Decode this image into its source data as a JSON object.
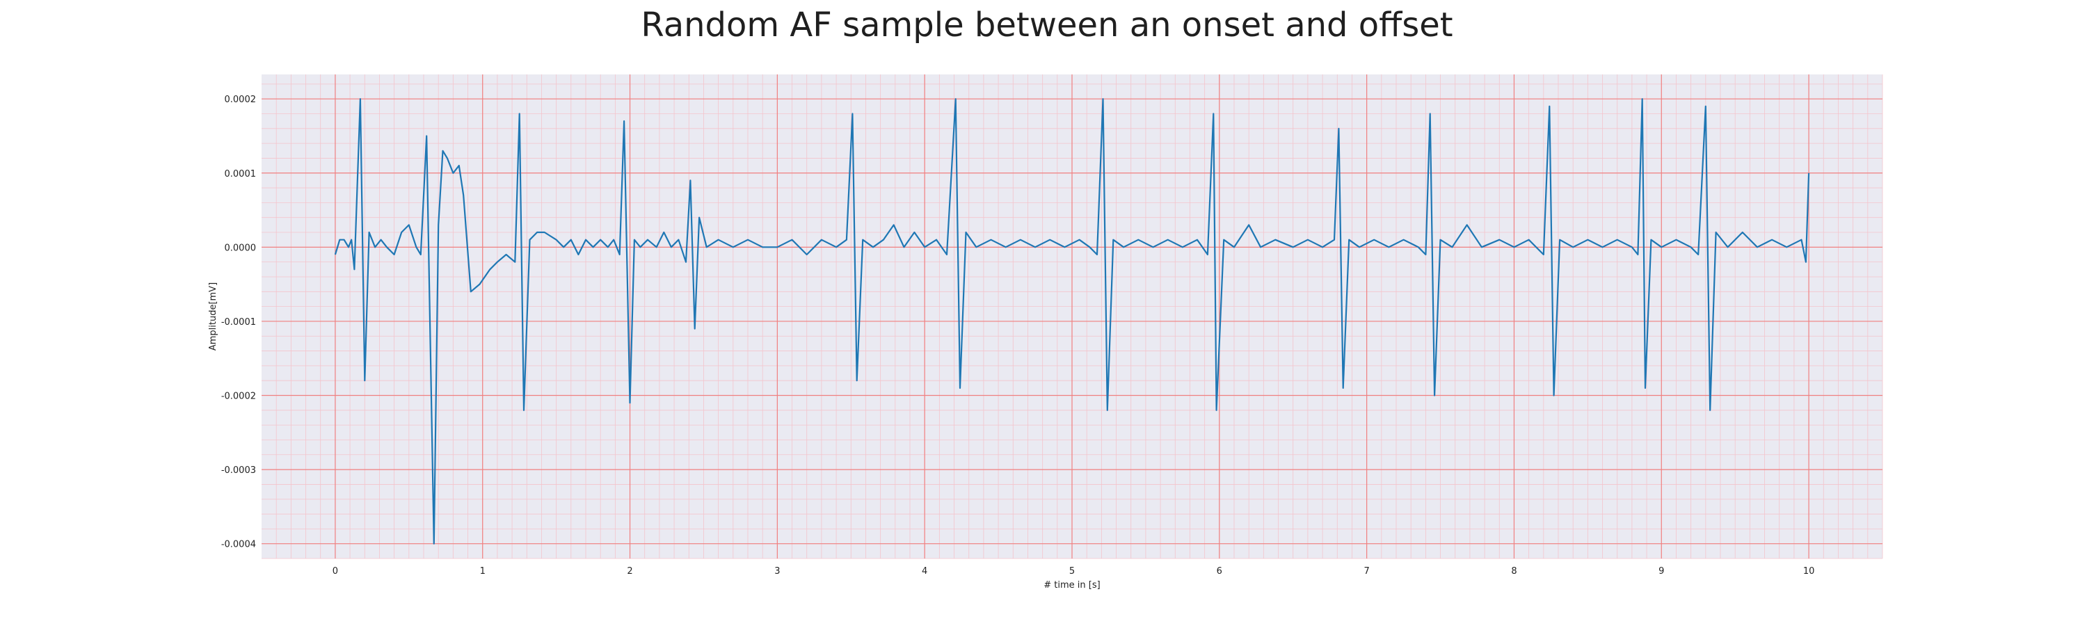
{
  "chart_data": {
    "type": "line",
    "title": "Random AF sample between an onset and offset",
    "xlabel": "# time in [s]",
    "ylabel": "Amplitude[mV]",
    "xlim": [
      -0.5,
      10.5
    ],
    "ylim": [
      -0.00042,
      0.000233
    ],
    "xticks": [
      0,
      1,
      2,
      3,
      4,
      5,
      6,
      7,
      8,
      9,
      10
    ],
    "xtick_labels": [
      "0",
      "1",
      "2",
      "3",
      "4",
      "5",
      "6",
      "7",
      "8",
      "9",
      "10"
    ],
    "yticks": [
      0.0002,
      0.0001,
      0.0,
      -0.0001,
      -0.0002,
      -0.0003,
      -0.0004
    ],
    "ytick_labels": [
      "0.0002",
      "0.0001",
      "0.0000",
      "-0.0001",
      "-0.0002",
      "-0.0003",
      "-0.0004"
    ],
    "grid": true,
    "minor_grid": true,
    "colors": {
      "background": "#eaeaf2",
      "major_grid": "#f08080",
      "minor_grid": "#f4c4cc",
      "line": "#1f77b4"
    },
    "series": [
      {
        "points": [
          [
            0.0,
            -1e-05
          ],
          [
            0.03,
            1e-05
          ],
          [
            0.06,
            1e-05
          ],
          [
            0.09,
            0.0
          ],
          [
            0.11,
            1e-05
          ],
          [
            0.13,
            -3e-05
          ],
          [
            0.17,
            0.0002
          ],
          [
            0.2,
            -0.00018
          ],
          [
            0.23,
            2e-05
          ],
          [
            0.27,
            0.0
          ],
          [
            0.31,
            1e-05
          ],
          [
            0.35,
            0.0
          ],
          [
            0.4,
            -1e-05
          ],
          [
            0.45,
            2e-05
          ],
          [
            0.5,
            3e-05
          ],
          [
            0.55,
            0.0
          ],
          [
            0.58,
            -1e-05
          ],
          [
            0.62,
            0.00015
          ],
          [
            0.67,
            -0.0004
          ],
          [
            0.7,
            3e-05
          ],
          [
            0.73,
            0.00013
          ],
          [
            0.76,
            0.00012
          ],
          [
            0.8,
            0.0001
          ],
          [
            0.84,
            0.00011
          ],
          [
            0.87,
            7e-05
          ],
          [
            0.92,
            -6e-05
          ],
          [
            0.98,
            -5e-05
          ],
          [
            1.05,
            -3e-05
          ],
          [
            1.1,
            -2e-05
          ],
          [
            1.16,
            -1e-05
          ],
          [
            1.22,
            -2e-05
          ],
          [
            1.25,
            0.00018
          ],
          [
            1.28,
            -0.00022
          ],
          [
            1.32,
            1e-05
          ],
          [
            1.37,
            2e-05
          ],
          [
            1.42,
            2e-05
          ],
          [
            1.5,
            1e-05
          ],
          [
            1.55,
            0.0
          ],
          [
            1.6,
            1e-05
          ],
          [
            1.65,
            -1e-05
          ],
          [
            1.7,
            1e-05
          ],
          [
            1.75,
            0.0
          ],
          [
            1.8,
            1e-05
          ],
          [
            1.85,
            0.0
          ],
          [
            1.89,
            1e-05
          ],
          [
            1.93,
            -1e-05
          ],
          [
            1.96,
            0.00017
          ],
          [
            2.0,
            -0.00021
          ],
          [
            2.03,
            1e-05
          ],
          [
            2.07,
            0.0
          ],
          [
            2.12,
            1e-05
          ],
          [
            2.18,
            0.0
          ],
          [
            2.23,
            2e-05
          ],
          [
            2.28,
            0.0
          ],
          [
            2.33,
            1e-05
          ],
          [
            2.38,
            -2e-05
          ],
          [
            2.41,
            9e-05
          ],
          [
            2.44,
            -0.00011
          ],
          [
            2.47,
            4e-05
          ],
          [
            2.52,
            0.0
          ],
          [
            2.6,
            1e-05
          ],
          [
            2.7,
            0.0
          ],
          [
            2.8,
            1e-05
          ],
          [
            2.9,
            0.0
          ],
          [
            3.0,
            0.0
          ],
          [
            3.1,
            1e-05
          ],
          [
            3.2,
            -1e-05
          ],
          [
            3.3,
            1e-05
          ],
          [
            3.4,
            0.0
          ],
          [
            3.47,
            1e-05
          ],
          [
            3.51,
            0.00018
          ],
          [
            3.54,
            -0.00018
          ],
          [
            3.58,
            1e-05
          ],
          [
            3.65,
            0.0
          ],
          [
            3.72,
            1e-05
          ],
          [
            3.79,
            3e-05
          ],
          [
            3.86,
            0.0
          ],
          [
            3.93,
            2e-05
          ],
          [
            4.0,
            0.0
          ],
          [
            4.08,
            1e-05
          ],
          [
            4.15,
            -1e-05
          ],
          [
            4.21,
            0.0002
          ],
          [
            4.24,
            -0.00019
          ],
          [
            4.28,
            2e-05
          ],
          [
            4.35,
            0.0
          ],
          [
            4.45,
            1e-05
          ],
          [
            4.55,
            0.0
          ],
          [
            4.65,
            1e-05
          ],
          [
            4.75,
            0.0
          ],
          [
            4.85,
            1e-05
          ],
          [
            4.95,
            0.0
          ],
          [
            5.05,
            1e-05
          ],
          [
            5.12,
            0.0
          ],
          [
            5.17,
            -1e-05
          ],
          [
            5.21,
            0.0002
          ],
          [
            5.24,
            -0.00022
          ],
          [
            5.28,
            1e-05
          ],
          [
            5.35,
            0.0
          ],
          [
            5.45,
            1e-05
          ],
          [
            5.55,
            0.0
          ],
          [
            5.65,
            1e-05
          ],
          [
            5.75,
            0.0
          ],
          [
            5.85,
            1e-05
          ],
          [
            5.92,
            -1e-05
          ],
          [
            5.96,
            0.00018
          ],
          [
            5.98,
            -0.00022
          ],
          [
            6.03,
            1e-05
          ],
          [
            6.1,
            0.0
          ],
          [
            6.2,
            3e-05
          ],
          [
            6.28,
            0.0
          ],
          [
            6.38,
            1e-05
          ],
          [
            6.5,
            0.0
          ],
          [
            6.6,
            1e-05
          ],
          [
            6.7,
            0.0
          ],
          [
            6.78,
            1e-05
          ],
          [
            6.81,
            0.00016
          ],
          [
            6.84,
            -0.00019
          ],
          [
            6.88,
            1e-05
          ],
          [
            6.95,
            0.0
          ],
          [
            7.05,
            1e-05
          ],
          [
            7.15,
            0.0
          ],
          [
            7.25,
            1e-05
          ],
          [
            7.35,
            0.0
          ],
          [
            7.4,
            -1e-05
          ],
          [
            7.43,
            0.00018
          ],
          [
            7.46,
            -0.0002
          ],
          [
            7.5,
            1e-05
          ],
          [
            7.58,
            0.0
          ],
          [
            7.68,
            3e-05
          ],
          [
            7.78,
            0.0
          ],
          [
            7.9,
            1e-05
          ],
          [
            8.0,
            0.0
          ],
          [
            8.1,
            1e-05
          ],
          [
            8.2,
            -1e-05
          ],
          [
            8.24,
            0.00019
          ],
          [
            8.27,
            -0.0002
          ],
          [
            8.31,
            1e-05
          ],
          [
            8.4,
            0.0
          ],
          [
            8.5,
            1e-05
          ],
          [
            8.6,
            0.0
          ],
          [
            8.7,
            1e-05
          ],
          [
            8.8,
            0.0
          ],
          [
            8.84,
            -1e-05
          ],
          [
            8.87,
            0.0002
          ],
          [
            8.89,
            -0.00019
          ],
          [
            8.93,
            1e-05
          ],
          [
            9.0,
            0.0
          ],
          [
            9.1,
            1e-05
          ],
          [
            9.2,
            0.0
          ],
          [
            9.25,
            -1e-05
          ],
          [
            9.3,
            0.00019
          ],
          [
            9.33,
            -0.00022
          ],
          [
            9.37,
            2e-05
          ],
          [
            9.45,
            0.0
          ],
          [
            9.55,
            2e-05
          ],
          [
            9.65,
            0.0
          ],
          [
            9.75,
            1e-05
          ],
          [
            9.85,
            0.0
          ],
          [
            9.95,
            1e-05
          ],
          [
            9.98,
            -2e-05
          ],
          [
            10.0,
            0.0001
          ]
        ]
      }
    ]
  }
}
